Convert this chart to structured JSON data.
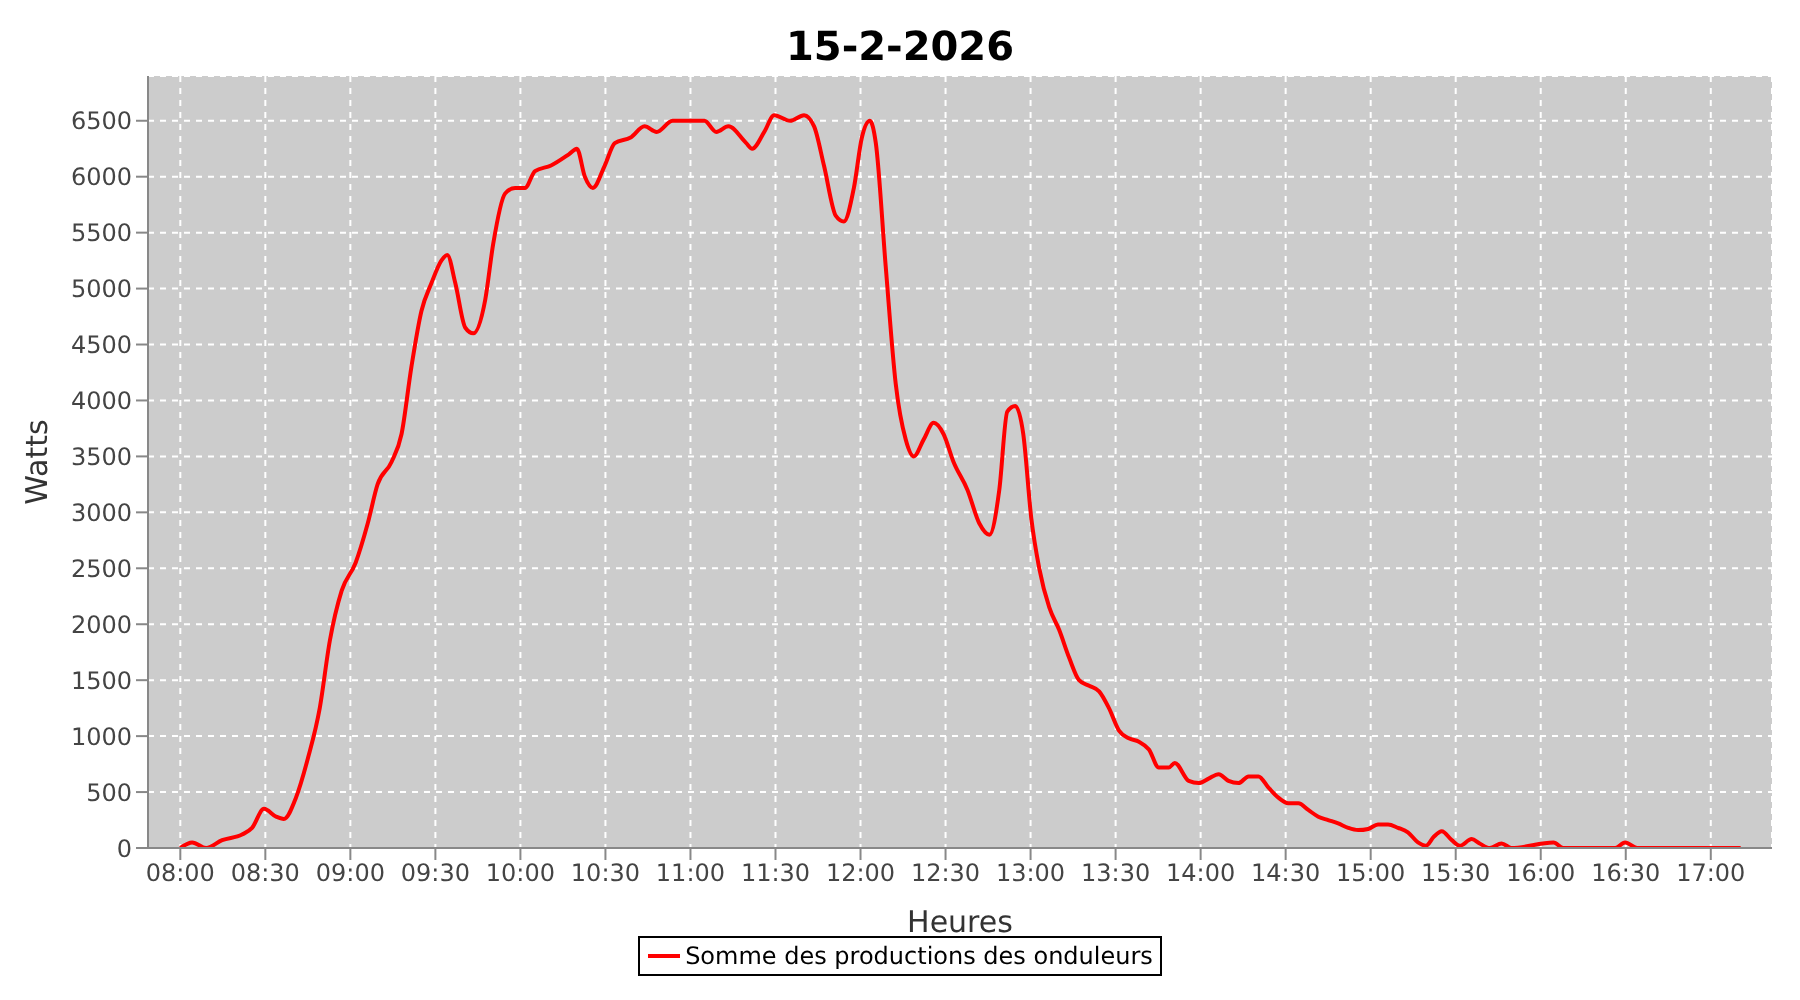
{
  "chart_data": {
    "type": "line",
    "title": "15-2-2026",
    "xlabel": "Heures",
    "ylabel": "Watts",
    "xlim": [
      7.81,
      17.36
    ],
    "xticks": [
      {
        "value": 8,
        "label": "08:00"
      },
      {
        "value": 8.5,
        "label": "08:30"
      },
      {
        "value": 9,
        "label": "09:00"
      },
      {
        "value": 9.5,
        "label": "09:30"
      },
      {
        "value": 10,
        "label": "10:00"
      },
      {
        "value": 10.5,
        "label": "10:30"
      },
      {
        "value": 11,
        "label": "11:00"
      },
      {
        "value": 11.5,
        "label": "11:30"
      },
      {
        "value": 12,
        "label": "12:00"
      },
      {
        "value": 12.5,
        "label": "12:30"
      },
      {
        "value": 13,
        "label": "13:00"
      },
      {
        "value": 13.5,
        "label": "13:30"
      },
      {
        "value": 14,
        "label": "14:00"
      },
      {
        "value": 14.5,
        "label": "14:30"
      },
      {
        "value": 15,
        "label": "15:00"
      },
      {
        "value": 15.5,
        "label": "15:30"
      },
      {
        "value": 16,
        "label": "16:00"
      },
      {
        "value": 16.5,
        "label": "16:30"
      },
      {
        "value": 17,
        "label": "17:00"
      }
    ],
    "ylim": [
      0,
      6900
    ],
    "yticks": [
      0,
      500,
      1000,
      1500,
      2000,
      2500,
      3000,
      3500,
      4000,
      4500,
      5000,
      5500,
      6000,
      6500
    ],
    "grid": true,
    "legend": "bottom",
    "marker": "none",
    "line_style": "solid",
    "series": [
      {
        "name": "Somme des productions des onduleurs",
        "color": "#ff0000",
        "x": [
          8.0,
          8.07,
          8.152,
          8.246,
          8.363,
          8.422,
          8.492,
          8.563,
          8.609,
          8.68,
          8.75,
          8.82,
          8.879,
          8.949,
          9.031,
          9.102,
          9.16,
          9.242,
          9.301,
          9.359,
          9.418,
          9.477,
          9.535,
          9.57,
          9.617,
          9.676,
          9.723,
          9.793,
          9.84,
          9.91,
          9.969,
          10.027,
          10.086,
          10.18,
          10.285,
          10.332,
          10.379,
          10.426,
          10.496,
          10.555,
          10.648,
          10.73,
          10.801,
          10.895,
          11.0,
          11.082,
          11.152,
          11.223,
          11.328,
          11.363,
          11.434,
          11.492,
          11.586,
          11.668,
          11.727,
          11.785,
          11.855,
          11.902,
          11.961,
          12.008,
          12.055,
          12.09,
          12.148,
          12.207,
          12.266,
          12.313,
          12.371,
          12.43,
          12.488,
          12.547,
          12.629,
          12.699,
          12.758,
          12.816,
          12.863,
          12.91,
          12.957,
          13.004,
          13.051,
          13.11,
          13.168,
          13.227,
          13.285,
          13.344,
          13.403,
          13.461,
          13.52,
          13.578,
          13.637,
          13.696,
          13.754,
          13.813,
          13.848,
          13.93,
          13.989,
          14.047,
          14.106,
          14.164,
          14.223,
          14.282,
          14.34,
          14.399,
          14.457,
          14.516,
          14.575,
          14.633,
          14.692,
          14.75,
          14.809,
          14.868,
          14.926,
          14.985,
          15.043,
          15.102,
          15.161,
          15.219,
          15.278,
          15.325,
          15.371,
          15.418,
          15.477,
          15.524,
          15.594,
          15.641,
          15.7,
          15.77,
          15.828,
          16.075,
          16.133,
          16.438,
          16.496,
          16.567,
          17.176
        ],
        "values": [
          0,
          50,
          0,
          70,
          120,
          180,
          350,
          280,
          260,
          450,
          800,
          1250,
          1850,
          2300,
          2550,
          2900,
          3250,
          3450,
          3700,
          4300,
          4800,
          5050,
          5250,
          5300,
          5050,
          4650,
          4600,
          4900,
          5400,
          5850,
          5900,
          5900,
          6050,
          6100,
          6200,
          6250,
          6000,
          5900,
          6100,
          6300,
          6350,
          6450,
          6400,
          6500,
          6500,
          6500,
          6400,
          6450,
          6300,
          6250,
          6400,
          6550,
          6500,
          6550,
          6450,
          6100,
          5650,
          5600,
          5900,
          6350,
          6500,
          6300,
          5200,
          4150,
          3650,
          3500,
          3650,
          3800,
          3700,
          3450,
          3200,
          2900,
          2800,
          3200,
          3900,
          3950,
          3700,
          2950,
          2500,
          2150,
          1950,
          1700,
          1500,
          1450,
          1400,
          1250,
          1050,
          980,
          950,
          880,
          720,
          720,
          760,
          600,
          580,
          620,
          660,
          600,
          580,
          640,
          640,
          540,
          450,
          400,
          400,
          340,
          280,
          250,
          220,
          180,
          160,
          170,
          210,
          210,
          180,
          140,
          50,
          20,
          100,
          150,
          70,
          20,
          80,
          40,
          0,
          40,
          0,
          50,
          0,
          0,
          50,
          0,
          0
        ]
      }
    ]
  }
}
